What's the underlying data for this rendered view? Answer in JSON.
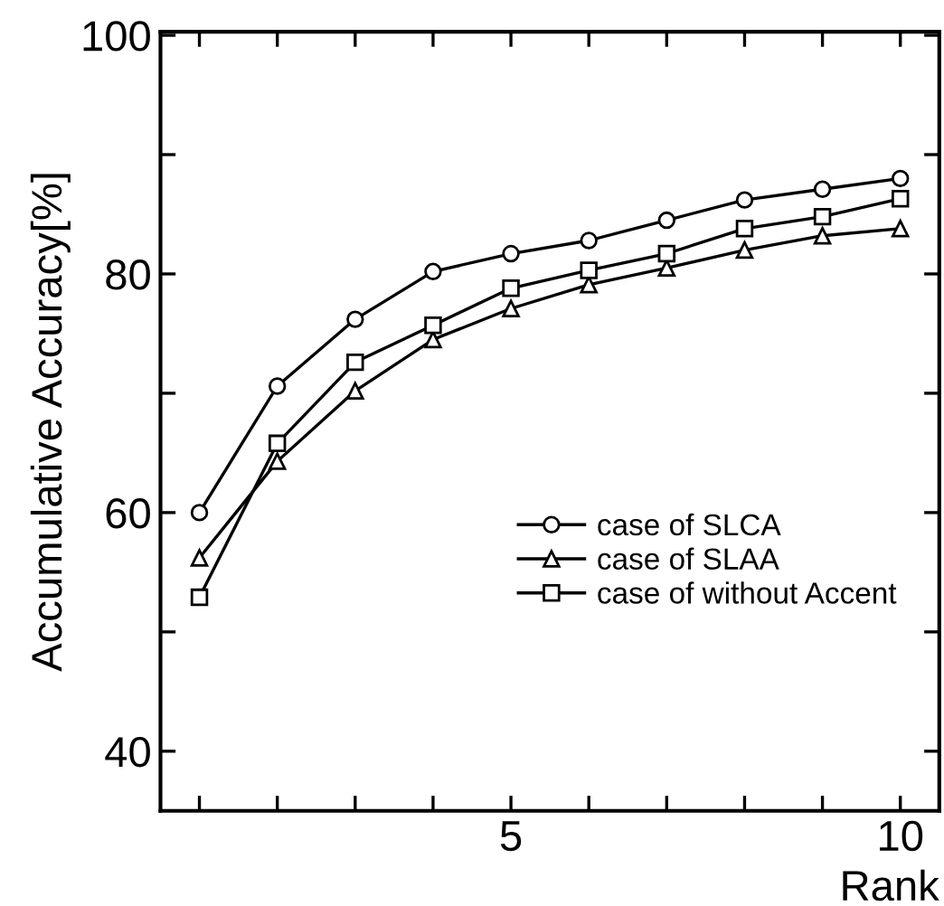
{
  "chart_data": {
    "type": "line",
    "xlabel": "Rank",
    "ylabel": "Accumulative Accuracy[%]",
    "x": [
      1,
      2,
      3,
      4,
      5,
      6,
      7,
      8,
      9,
      10
    ],
    "series": [
      {
        "name": "case of SLCA",
        "color": "#000000",
        "marker": "circle",
        "values": [
          60.0,
          70.6,
          76.2,
          80.2,
          81.7,
          82.8,
          84.5,
          86.2,
          87.1,
          88.0
        ]
      },
      {
        "name": "case of SLAA",
        "color": "#000000",
        "marker": "triangle",
        "values": [
          56.2,
          64.3,
          70.2,
          74.5,
          77.1,
          79.1,
          80.5,
          82.0,
          83.2,
          83.8
        ]
      },
      {
        "name": "case of without Accent",
        "color": "#000000",
        "marker": "square",
        "values": [
          52.9,
          65.8,
          72.6,
          75.7,
          78.8,
          80.3,
          81.7,
          83.8,
          84.8,
          86.3
        ]
      }
    ],
    "xlim": [
      0.5,
      10.5
    ],
    "ylim": [
      35,
      100.3
    ],
    "xticks": [
      {
        "value": 1,
        "label": null
      },
      {
        "value": 2,
        "label": null
      },
      {
        "value": 3,
        "label": null
      },
      {
        "value": 4,
        "label": null
      },
      5,
      {
        "value": 6,
        "label": null
      },
      {
        "value": 7,
        "label": null
      },
      {
        "value": 8,
        "label": null
      },
      {
        "value": 9,
        "label": null
      },
      10
    ],
    "yticks": [
      40,
      {
        "value": 50,
        "label": null
      },
      60,
      {
        "value": 70,
        "label": null
      },
      80,
      {
        "value": 90,
        "label": null
      },
      100
    ],
    "legend": "center right",
    "grid": false,
    "line_style": "solid"
  }
}
